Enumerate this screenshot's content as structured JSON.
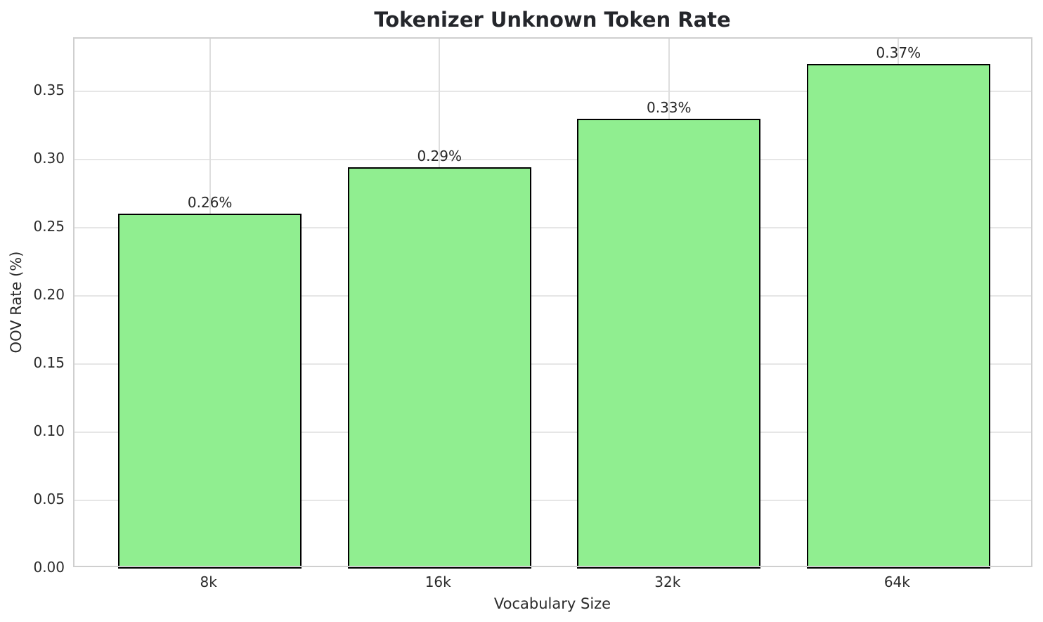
{
  "chart_data": {
    "type": "bar",
    "title": "Tokenizer Unknown Token Rate",
    "xlabel": "Vocabulary Size",
    "ylabel": "OOV Rate (%)",
    "categories": [
      "8k",
      "16k",
      "32k",
      "64k"
    ],
    "values": [
      0.26,
      0.294,
      0.33,
      0.37
    ],
    "value_labels": [
      "0.26%",
      "0.29%",
      "0.33%",
      "0.37%"
    ],
    "ytick_labels": [
      "0.00",
      "0.05",
      "0.10",
      "0.15",
      "0.20",
      "0.25",
      "0.30",
      "0.35"
    ],
    "ylim": [
      0,
      0.3885
    ],
    "bar_width_fraction": 0.8,
    "grid": true,
    "legend_position": "none",
    "bar_color": "#90EE90",
    "bar_edge_color": "#000000"
  },
  "colors": {
    "background": "#ffffff",
    "text": "#262626",
    "grid": "#e2e2e2",
    "spine": "#cfcfcf"
  }
}
